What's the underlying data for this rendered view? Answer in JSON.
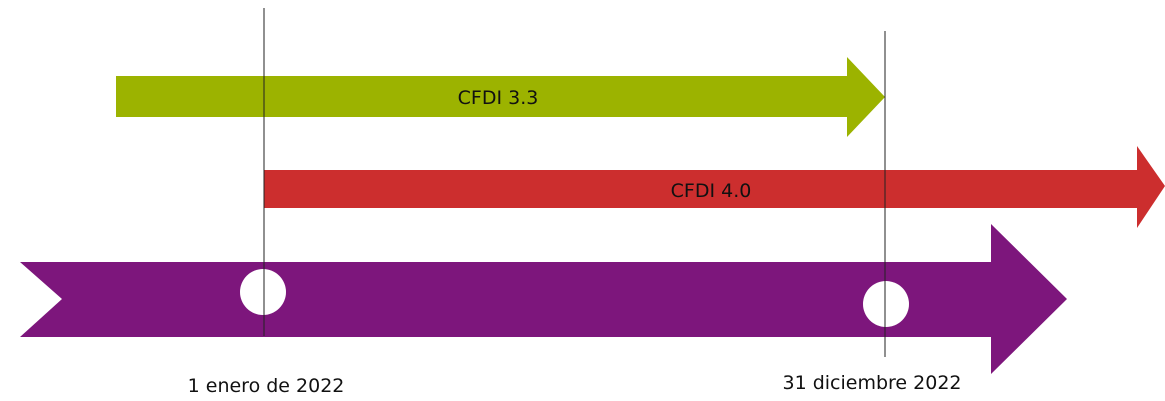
{
  "arrows": [
    {
      "label": "CFDI 3.3"
    },
    {
      "label": "CFDI 4.0"
    }
  ],
  "dates": [
    {
      "label": "1 enero de 2022"
    },
    {
      "label": "31 diciembre 2022"
    }
  ]
}
